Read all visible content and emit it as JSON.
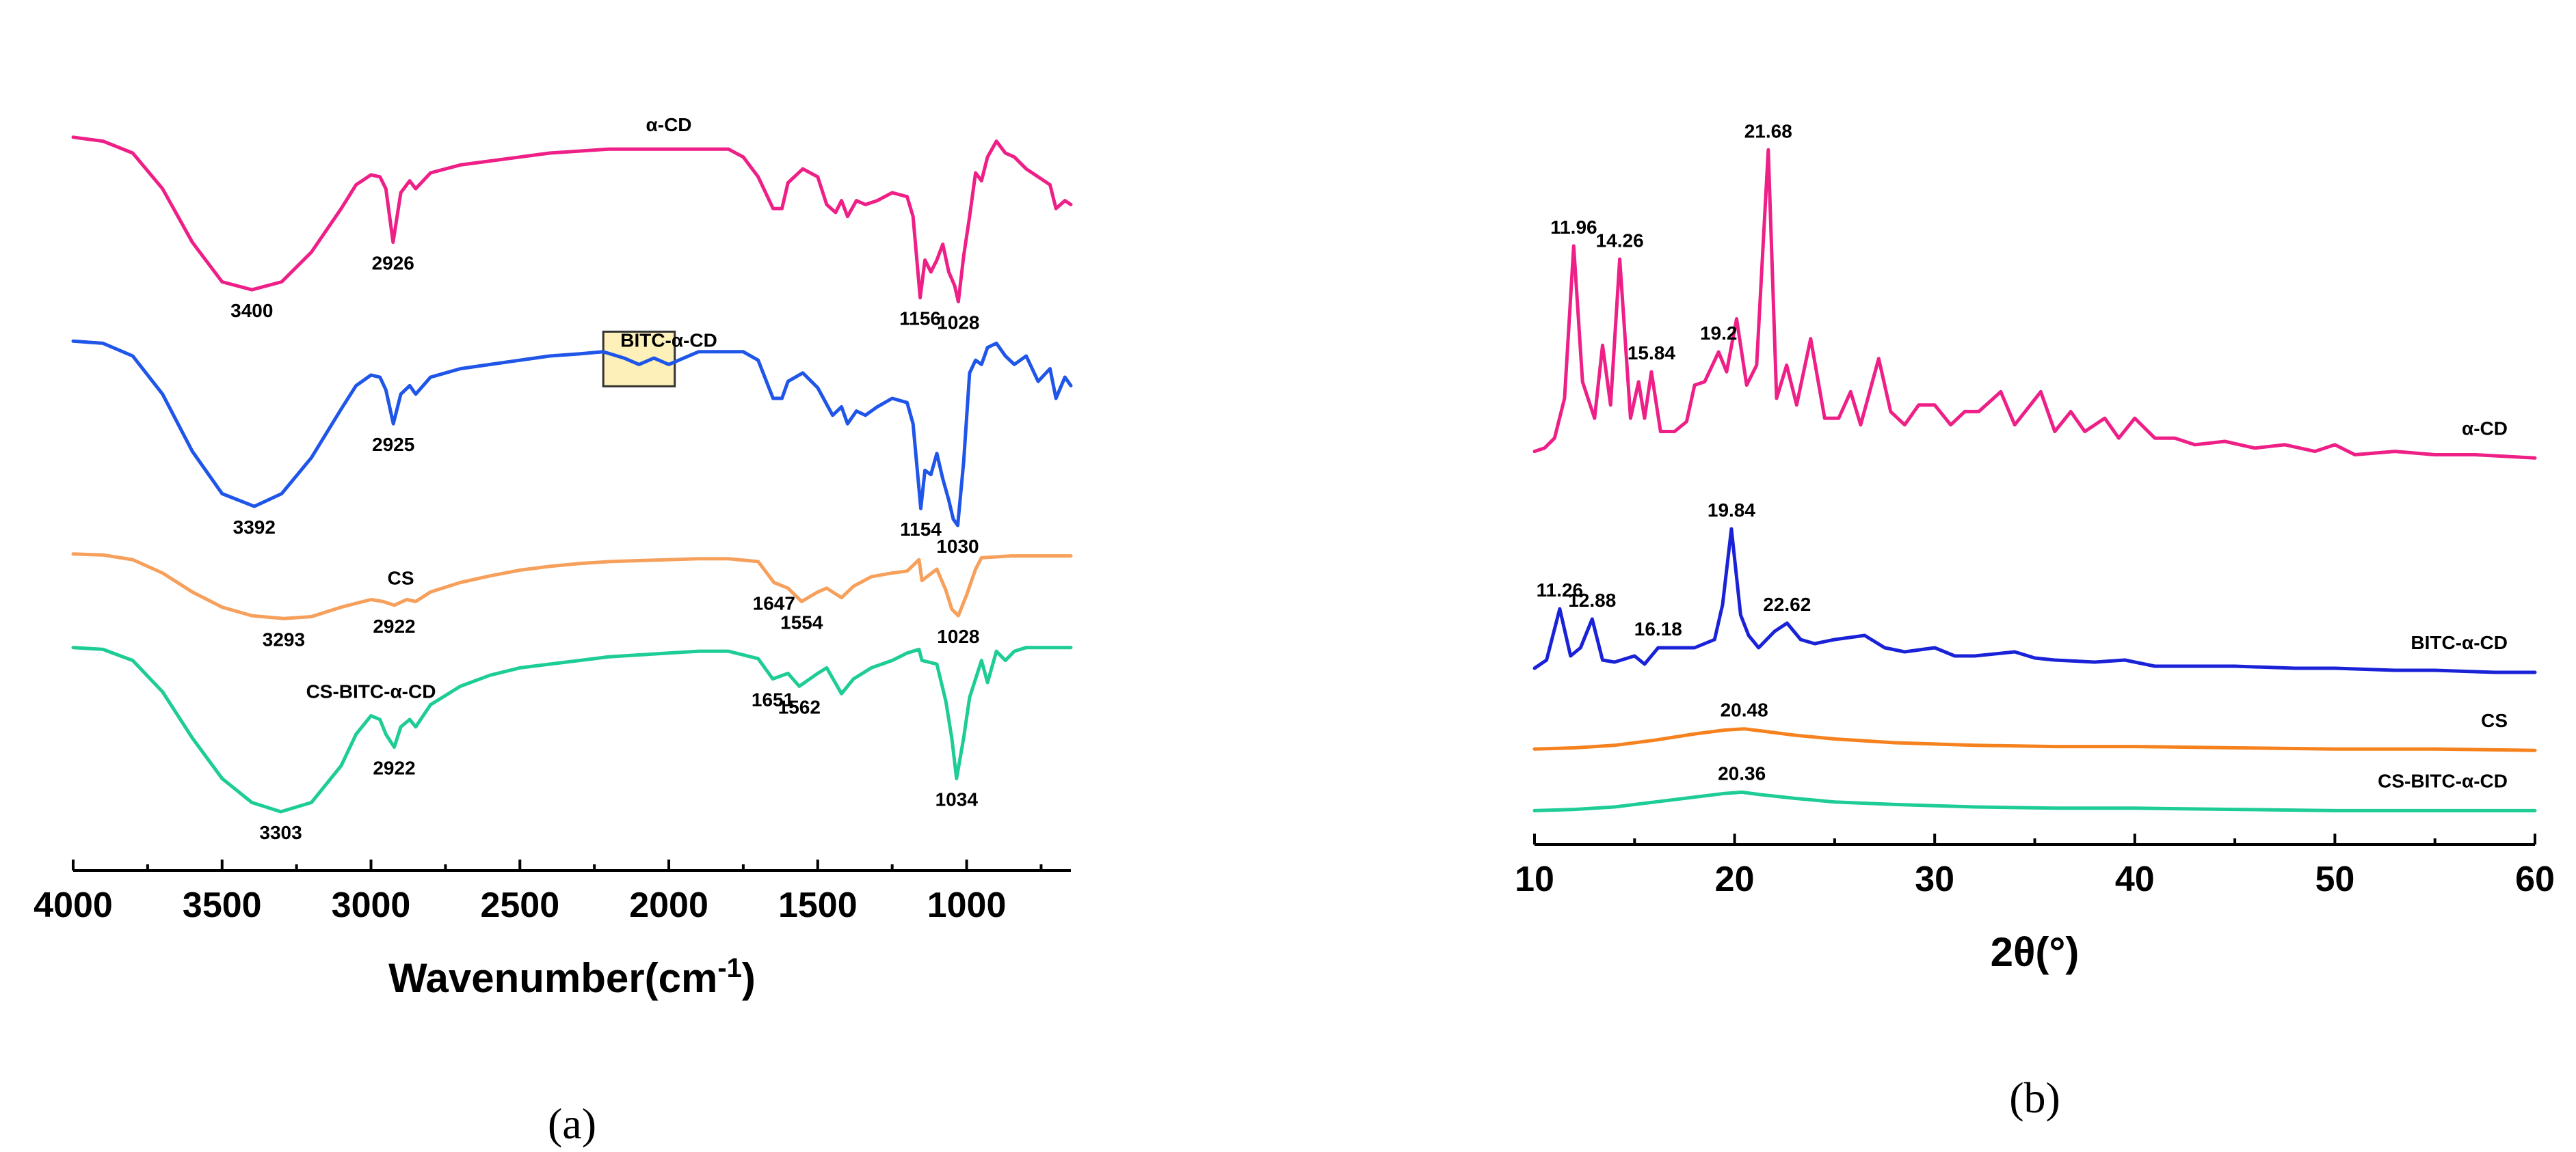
{
  "chart_data": [
    {
      "type": "line",
      "panel_label": "(a)",
      "xlabel": "Wavenumber(cm",
      "xlabel_sup": "-1",
      "xlabel_end": ")",
      "ylabel": "",
      "xlim": [
        4000,
        650
      ],
      "x_reversed": true,
      "xticks": [
        4000,
        3500,
        3000,
        2500,
        2000,
        1500,
        1000
      ],
      "highlight_box": {
        "x_range": [
          2220,
          1980
        ],
        "series": "BITC-α-CD",
        "color": "#fdf0b8"
      },
      "series": [
        {
          "name": "α-CD",
          "color": "#ee1f86",
          "label_x": 2000,
          "x": [
            4000,
            3900,
            3800,
            3700,
            3600,
            3500,
            3400,
            3300,
            3200,
            3100,
            3050,
            3000,
            2970,
            2950,
            2926,
            2900,
            2870,
            2850,
            2800,
            2700,
            2600,
            2500,
            2400,
            2300,
            2200,
            2100,
            2000,
            1900,
            1800,
            1750,
            1700,
            1650,
            1620,
            1600,
            1550,
            1500,
            1470,
            1440,
            1420,
            1400,
            1370,
            1340,
            1300,
            1250,
            1200,
            1180,
            1156,
            1140,
            1120,
            1100,
            1080,
            1060,
            1040,
            1028,
            1010,
            990,
            970,
            950,
            930,
            900,
            870,
            840,
            800,
            760,
            720,
            700,
            670,
            650
          ],
          "y": [
            0.98,
            0.96,
            0.9,
            0.72,
            0.45,
            0.25,
            0.21,
            0.25,
            0.4,
            0.62,
            0.74,
            0.79,
            0.78,
            0.72,
            0.45,
            0.7,
            0.76,
            0.72,
            0.8,
            0.84,
            0.86,
            0.88,
            0.9,
            0.91,
            0.92,
            0.92,
            0.92,
            0.92,
            0.92,
            0.88,
            0.78,
            0.62,
            0.62,
            0.75,
            0.82,
            0.78,
            0.64,
            0.6,
            0.66,
            0.58,
            0.66,
            0.64,
            0.66,
            0.7,
            0.68,
            0.58,
            0.17,
            0.36,
            0.3,
            0.36,
            0.44,
            0.3,
            0.23,
            0.15,
            0.38,
            0.58,
            0.8,
            0.76,
            0.88,
            0.96,
            0.9,
            0.88,
            0.82,
            0.78,
            0.74,
            0.62,
            0.66,
            0.64
          ],
          "peaks": [
            {
              "x": 3400,
              "label": "3400"
            },
            {
              "x": 2926,
              "label": "2926"
            },
            {
              "x": 1156,
              "label": "1156"
            },
            {
              "x": 1028,
              "label": "1028"
            }
          ]
        },
        {
          "name": "BITC-α-CD",
          "color": "#1f55e8",
          "label_x": 2000,
          "x": [
            4000,
            3900,
            3800,
            3700,
            3600,
            3500,
            3392,
            3300,
            3200,
            3100,
            3050,
            3000,
            2970,
            2950,
            2925,
            2900,
            2870,
            2850,
            2800,
            2700,
            2600,
            2500,
            2400,
            2300,
            2220,
            2150,
            2100,
            2050,
            2000,
            1950,
            1900,
            1800,
            1750,
            1700,
            1650,
            1620,
            1600,
            1550,
            1500,
            1450,
            1420,
            1400,
            1370,
            1340,
            1300,
            1250,
            1200,
            1180,
            1154,
            1140,
            1120,
            1100,
            1080,
            1060,
            1045,
            1030,
            1010,
            990,
            970,
            950,
            930,
            900,
            870,
            840,
            800,
            760,
            720,
            700,
            670,
            650
          ],
          "y": [
            0.97,
            0.96,
            0.9,
            0.72,
            0.45,
            0.25,
            0.19,
            0.25,
            0.42,
            0.65,
            0.76,
            0.81,
            0.8,
            0.74,
            0.58,
            0.72,
            0.76,
            0.72,
            0.8,
            0.84,
            0.86,
            0.88,
            0.9,
            0.91,
            0.92,
            0.89,
            0.86,
            0.89,
            0.86,
            0.89,
            0.92,
            0.92,
            0.92,
            0.88,
            0.7,
            0.7,
            0.78,
            0.82,
            0.75,
            0.62,
            0.66,
            0.58,
            0.64,
            0.62,
            0.66,
            0.7,
            0.68,
            0.58,
            0.18,
            0.36,
            0.34,
            0.44,
            0.32,
            0.22,
            0.13,
            0.1,
            0.4,
            0.82,
            0.88,
            0.86,
            0.94,
            0.96,
            0.9,
            0.86,
            0.9,
            0.78,
            0.84,
            0.7,
            0.8,
            0.76
          ],
          "peaks": [
            {
              "x": 3392,
              "label": "3392"
            },
            {
              "x": 2925,
              "label": "2925"
            },
            {
              "x": 1154,
              "label": "1154"
            },
            {
              "x": 1030,
              "label": "1030"
            }
          ]
        },
        {
          "name": "CS",
          "color": "#f6a05c",
          "label_x": 2900,
          "x": [
            4000,
            3900,
            3800,
            3700,
            3600,
            3500,
            3400,
            3293,
            3200,
            3100,
            3000,
            2960,
            2922,
            2880,
            2850,
            2800,
            2700,
            2600,
            2500,
            2400,
            2300,
            2200,
            2100,
            2000,
            1900,
            1800,
            1700,
            1647,
            1600,
            1554,
            1500,
            1470,
            1420,
            1380,
            1320,
            1250,
            1200,
            1160,
            1150,
            1100,
            1070,
            1050,
            1028,
            1000,
            970,
            950,
            900,
            850,
            800,
            750,
            700,
            650
          ],
          "y": [
            0.98,
            0.97,
            0.92,
            0.78,
            0.58,
            0.42,
            0.33,
            0.3,
            0.32,
            0.42,
            0.5,
            0.48,
            0.44,
            0.5,
            0.48,
            0.58,
            0.68,
            0.75,
            0.81,
            0.85,
            0.88,
            0.9,
            0.91,
            0.92,
            0.93,
            0.93,
            0.9,
            0.68,
            0.62,
            0.48,
            0.58,
            0.62,
            0.52,
            0.64,
            0.74,
            0.78,
            0.8,
            0.92,
            0.7,
            0.82,
            0.6,
            0.4,
            0.33,
            0.55,
            0.82,
            0.94,
            0.95,
            0.96,
            0.96,
            0.96,
            0.96,
            0.96
          ],
          "peaks": [
            {
              "x": 3293,
              "label": "3293"
            },
            {
              "x": 2922,
              "label": "2922"
            },
            {
              "x": 1647,
              "label": "1647"
            },
            {
              "x": 1554,
              "label": "1554"
            },
            {
              "x": 1028,
              "label": "1028"
            }
          ]
        },
        {
          "name": "CS-BITC-α-CD",
          "color": "#1ecc96",
          "label_x": 3000,
          "x": [
            4000,
            3900,
            3800,
            3700,
            3600,
            3500,
            3400,
            3303,
            3200,
            3100,
            3050,
            3000,
            2970,
            2950,
            2922,
            2900,
            2870,
            2850,
            2800,
            2700,
            2600,
            2500,
            2400,
            2300,
            2200,
            2100,
            2000,
            1900,
            1800,
            1700,
            1651,
            1600,
            1562,
            1500,
            1470,
            1420,
            1380,
            1320,
            1250,
            1200,
            1160,
            1150,
            1100,
            1070,
            1050,
            1034,
            1010,
            990,
            950,
            930,
            900,
            870,
            840,
            800,
            760,
            720,
            700,
            650
          ],
          "y": [
            0.99,
            0.98,
            0.92,
            0.75,
            0.5,
            0.28,
            0.15,
            0.1,
            0.15,
            0.35,
            0.52,
            0.62,
            0.6,
            0.52,
            0.45,
            0.56,
            0.6,
            0.56,
            0.68,
            0.78,
            0.84,
            0.88,
            0.9,
            0.92,
            0.94,
            0.95,
            0.96,
            0.97,
            0.97,
            0.93,
            0.82,
            0.85,
            0.78,
            0.85,
            0.88,
            0.74,
            0.82,
            0.88,
            0.92,
            0.96,
            0.98,
            0.92,
            0.9,
            0.7,
            0.5,
            0.28,
            0.5,
            0.72,
            0.92,
            0.8,
            0.97,
            0.92,
            0.97,
            0.99,
            0.99,
            0.99,
            0.99,
            0.99
          ],
          "peaks": [
            {
              "x": 3303,
              "label": "3303"
            },
            {
              "x": 2922,
              "label": "2922"
            },
            {
              "x": 1651,
              "label": "1651"
            },
            {
              "x": 1562,
              "label": "1562"
            },
            {
              "x": 1034,
              "label": "1034"
            }
          ]
        }
      ]
    },
    {
      "type": "line",
      "panel_label": "(b)",
      "xlabel": "2θ(°)",
      "ylabel": "",
      "xlim": [
        10,
        60
      ],
      "xticks": [
        10,
        20,
        30,
        40,
        50,
        60
      ],
      "series": [
        {
          "name": "α-CD",
          "color": "#ee1f86",
          "x": [
            10,
            10.5,
            11,
            11.5,
            11.96,
            12.4,
            13,
            13.4,
            13.8,
            14.26,
            14.8,
            15.2,
            15.5,
            15.84,
            16.3,
            17,
            17.6,
            18,
            18.5,
            19.2,
            19.6,
            20.1,
            20.6,
            21.1,
            21.68,
            22.1,
            22.6,
            23.1,
            23.8,
            24.5,
            25.2,
            25.8,
            26.3,
            27.2,
            27.8,
            28.5,
            29.2,
            30,
            30.8,
            31.5,
            32.2,
            33.3,
            34,
            35.3,
            36,
            36.8,
            37.5,
            38.5,
            39.2,
            40,
            41,
            42,
            43,
            44.5,
            46,
            47.5,
            49,
            50,
            51,
            53,
            55,
            57,
            60
          ],
          "y": [
            0.04,
            0.05,
            0.08,
            0.2,
            0.66,
            0.25,
            0.14,
            0.36,
            0.18,
            0.62,
            0.14,
            0.25,
            0.14,
            0.28,
            0.1,
            0.1,
            0.13,
            0.24,
            0.25,
            0.34,
            0.28,
            0.44,
            0.24,
            0.3,
            0.95,
            0.2,
            0.3,
            0.18,
            0.38,
            0.14,
            0.14,
            0.22,
            0.12,
            0.32,
            0.16,
            0.12,
            0.18,
            0.18,
            0.12,
            0.16,
            0.16,
            0.22,
            0.12,
            0.22,
            0.1,
            0.16,
            0.1,
            0.14,
            0.08,
            0.14,
            0.08,
            0.08,
            0.06,
            0.07,
            0.05,
            0.06,
            0.04,
            0.06,
            0.03,
            0.04,
            0.03,
            0.03,
            0.02
          ],
          "peaks": [
            {
              "x": 11.96,
              "label": "11.96"
            },
            {
              "x": 14.26,
              "label": "14.26"
            },
            {
              "x": 15.84,
              "label": "15.84"
            },
            {
              "x": 19.2,
              "label": "19.2"
            },
            {
              "x": 21.68,
              "label": "21.68"
            }
          ]
        },
        {
          "name": "BITC-α-CD",
          "color": "#1a22d8",
          "x": [
            10,
            10.6,
            11.26,
            11.8,
            12.3,
            12.88,
            13.4,
            14,
            15,
            15.5,
            16.18,
            17,
            18,
            19,
            19.4,
            19.84,
            20.3,
            20.7,
            21.2,
            22,
            22.62,
            23.3,
            24,
            25,
            26.5,
            27.5,
            28.5,
            30,
            31,
            32,
            34,
            35,
            36,
            38,
            39.5,
            41,
            43,
            45,
            48,
            50,
            53,
            55,
            58,
            60
          ],
          "y": [
            0.04,
            0.08,
            0.33,
            0.1,
            0.14,
            0.28,
            0.08,
            0.07,
            0.1,
            0.06,
            0.14,
            0.14,
            0.14,
            0.18,
            0.35,
            0.72,
            0.3,
            0.2,
            0.14,
            0.22,
            0.26,
            0.18,
            0.16,
            0.18,
            0.2,
            0.14,
            0.12,
            0.14,
            0.1,
            0.1,
            0.12,
            0.09,
            0.08,
            0.07,
            0.08,
            0.05,
            0.05,
            0.05,
            0.04,
            0.04,
            0.03,
            0.03,
            0.02,
            0.02
          ],
          "peaks": [
            {
              "x": 11.26,
              "label": "11.26"
            },
            {
              "x": 12.88,
              "label": "12.88"
            },
            {
              "x": 16.18,
              "label": "16.18"
            },
            {
              "x": 19.84,
              "label": "19.84"
            },
            {
              "x": 22.62,
              "label": "22.62"
            }
          ]
        },
        {
          "name": "CS",
          "color": "#f5821f",
          "x": [
            10,
            12,
            14,
            16,
            18,
            19.5,
            20.48,
            21.5,
            23,
            25,
            28,
            32,
            36,
            40,
            45,
            50,
            55,
            60
          ],
          "y": [
            0.02,
            0.03,
            0.05,
            0.09,
            0.14,
            0.17,
            0.18,
            0.16,
            0.13,
            0.1,
            0.07,
            0.05,
            0.04,
            0.04,
            0.03,
            0.02,
            0.02,
            0.01
          ],
          "peaks": [
            {
              "x": 20.48,
              "label": "20.48"
            }
          ]
        },
        {
          "name": "CS-BITC-α-CD",
          "color": "#1ecc96",
          "x": [
            10,
            12,
            14,
            16,
            18,
            19.5,
            20.36,
            21.3,
            23,
            25,
            28,
            32,
            36,
            40,
            45,
            50,
            55,
            60
          ],
          "y": [
            0.02,
            0.03,
            0.05,
            0.09,
            0.13,
            0.16,
            0.17,
            0.15,
            0.12,
            0.09,
            0.07,
            0.05,
            0.04,
            0.04,
            0.03,
            0.02,
            0.02,
            0.02
          ],
          "peaks": [
            {
              "x": 20.36,
              "label": "20.36"
            }
          ]
        }
      ]
    }
  ]
}
